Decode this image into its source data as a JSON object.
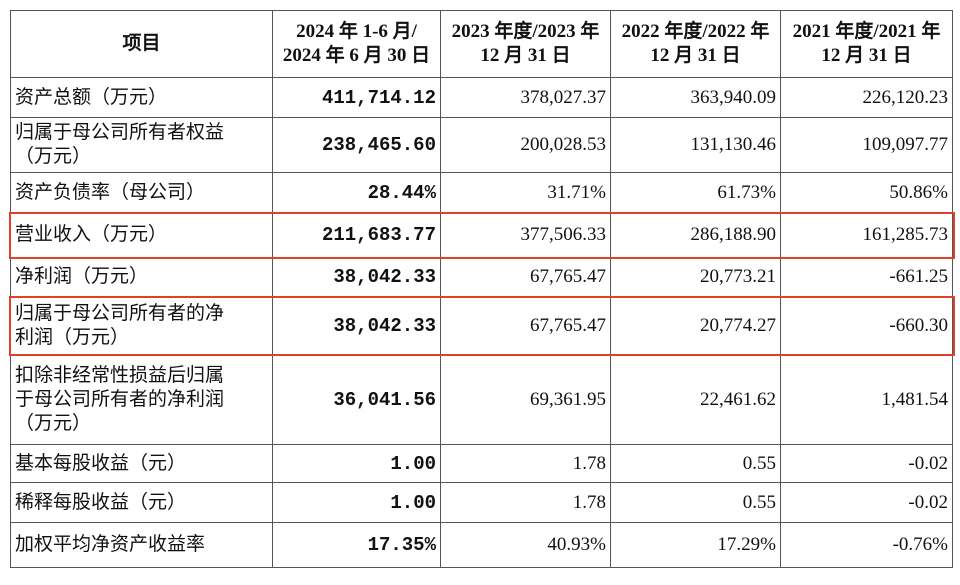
{
  "table": {
    "header": [
      [
        "项目"
      ],
      [
        "2024 年 1-6 月/",
        "2024 年 6 月 30 日"
      ],
      [
        "2023 年度/2023 年",
        "12 月 31 日"
      ],
      [
        "2022 年度/2022 年",
        "12 月 31 日"
      ],
      [
        "2021 年度/2021 年",
        "12 月 31 日"
      ]
    ],
    "rows": [
      {
        "label": [
          "资产总额（万元）"
        ],
        "values": [
          "411,714.12",
          "378,027.37",
          "363,940.09",
          "226,120.23"
        ]
      },
      {
        "label": [
          "归属于母公司所有者权益",
          "（万元）"
        ],
        "values": [
          "238,465.60",
          "200,028.53",
          "131,130.46",
          "109,097.77"
        ]
      },
      {
        "label": [
          "资产负债率（母公司）"
        ],
        "values": [
          "28.44%",
          "31.71%",
          "61.73%",
          "50.86%"
        ]
      },
      {
        "label": [
          "营业收入（万元）"
        ],
        "values": [
          "211,683.77",
          "377,506.33",
          "286,188.90",
          "161,285.73"
        ]
      },
      {
        "label": [
          "净利润（万元）"
        ],
        "values": [
          "38,042.33",
          "67,765.47",
          "20,773.21",
          "-661.25"
        ]
      },
      {
        "label": [
          "归属于母公司所有者的净",
          "利润（万元）"
        ],
        "values": [
          "38,042.33",
          "67,765.47",
          "20,774.27",
          "-660.30"
        ]
      },
      {
        "label": [
          "扣除非经常性损益后归属",
          "于母公司所有者的净利润",
          "（万元）"
        ],
        "values": [
          "36,041.56",
          "69,361.95",
          "22,461.62",
          "1,481.54"
        ]
      },
      {
        "label": [
          "基本每股收益（元）"
        ],
        "values": [
          "1.00",
          "1.78",
          "0.55",
          "-0.02"
        ]
      },
      {
        "label": [
          "稀释每股收益（元）"
        ],
        "values": [
          "1.00",
          "1.78",
          "0.55",
          "-0.02"
        ]
      },
      {
        "label": [
          "加权平均净资产收益率"
        ],
        "values": [
          "17.35%",
          "40.93%",
          "17.29%",
          "-0.76%"
        ]
      }
    ]
  }
}
